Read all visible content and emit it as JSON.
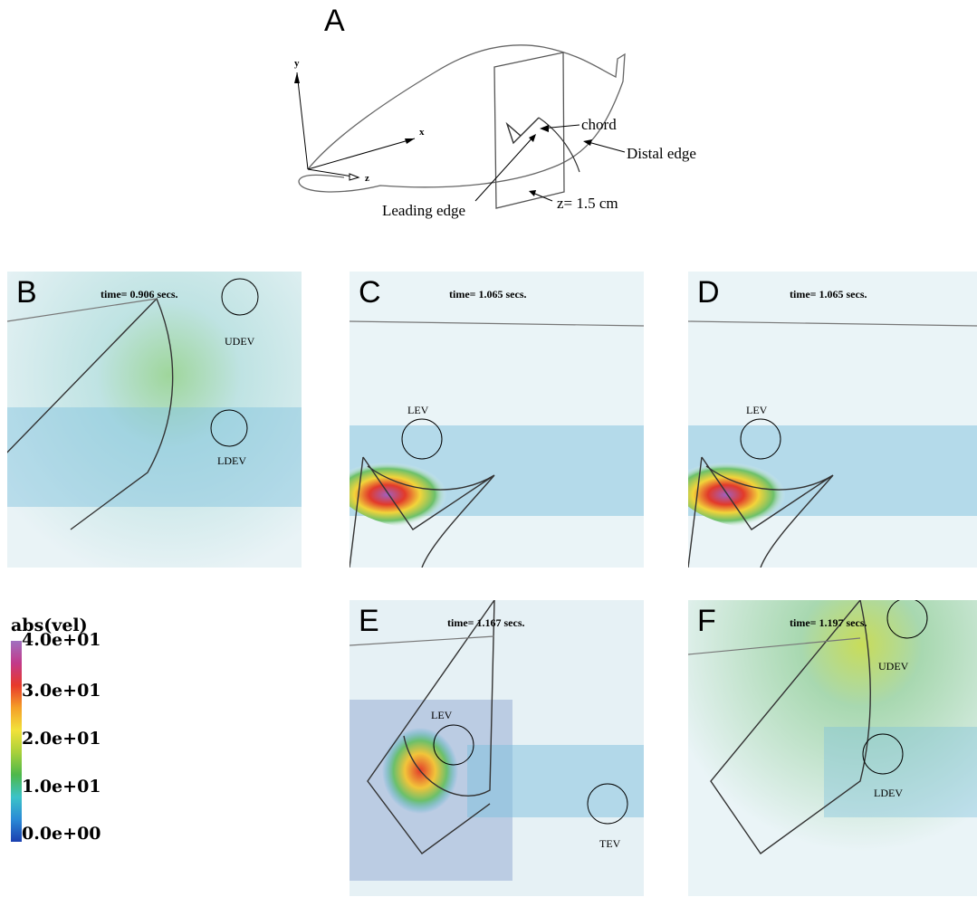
{
  "panel_a": {
    "label": "A",
    "axes": {
      "x": "x",
      "y": "y",
      "z": "z"
    },
    "annotations": {
      "chord": "chord",
      "distal_edge": "Distal edge",
      "leading_edge": "Leading edge",
      "plane": "z= 1.5 cm"
    }
  },
  "panels": [
    {
      "id": "B",
      "label": "B",
      "time": "time= 0.906 secs.",
      "vortices": [
        "UDEV",
        "LDEV"
      ]
    },
    {
      "id": "C",
      "label": "C",
      "time": "time= 1.065 secs.",
      "vortices": [
        "LEV"
      ]
    },
    {
      "id": "D",
      "label": "D",
      "time": "time= 1.065 secs.",
      "vortices": [
        "LEV"
      ]
    },
    {
      "id": "E",
      "label": "E",
      "time": "time= 1.167 secs.",
      "vortices": [
        "LEV",
        "TEV"
      ]
    },
    {
      "id": "F",
      "label": "F",
      "time": "time= 1.197 secs.",
      "vortices": [
        "UDEV",
        "LDEV"
      ]
    }
  ],
  "legend": {
    "title": "abs(vel)",
    "ticks": [
      "4.0e+01",
      "3.0e+01",
      "2.0e+01",
      "1.0e+01",
      "0.0e+00"
    ],
    "colors": [
      "#1a3fb0",
      "#2a8ad6",
      "#3cc3c8",
      "#4db84a",
      "#a8d03a",
      "#f2e23a",
      "#f5a028",
      "#e83a2a",
      "#c23a8a",
      "#a070c0"
    ]
  }
}
